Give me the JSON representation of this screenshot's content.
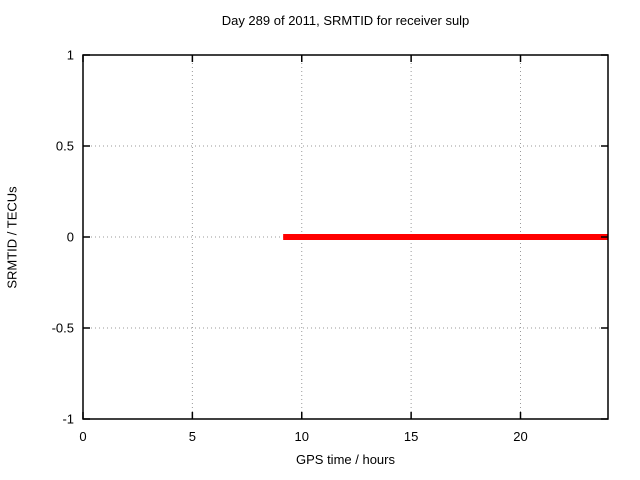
{
  "chart_data": {
    "type": "line",
    "title": "Day 289 of 2011, SRMTID for receiver sulp",
    "xlabel": "GPS time / hours",
    "ylabel": "SRMTID / TECUs",
    "xlim": [
      0,
      24
    ],
    "ylim": [
      -1,
      1
    ],
    "xticks": [
      0,
      5,
      10,
      15,
      20
    ],
    "yticks": [
      -1,
      -0.5,
      0,
      0.5,
      1
    ],
    "xtick_labels": [
      "0",
      "5",
      "10",
      "15",
      "20"
    ],
    "ytick_labels": [
      "-1",
      "-0.5",
      "0",
      "0.5",
      "1"
    ],
    "grid": true,
    "legend": "none",
    "colors": {
      "background": "#ffffff",
      "border": "#000000",
      "grid": "#9a9a9a",
      "text": "#000000",
      "series": "#ff0000"
    },
    "series": [
      {
        "name": "SRMTID",
        "color": "#ff0000",
        "linewidth": 6,
        "x": [
          9.15,
          24
        ],
        "y": [
          0,
          0
        ]
      }
    ]
  }
}
